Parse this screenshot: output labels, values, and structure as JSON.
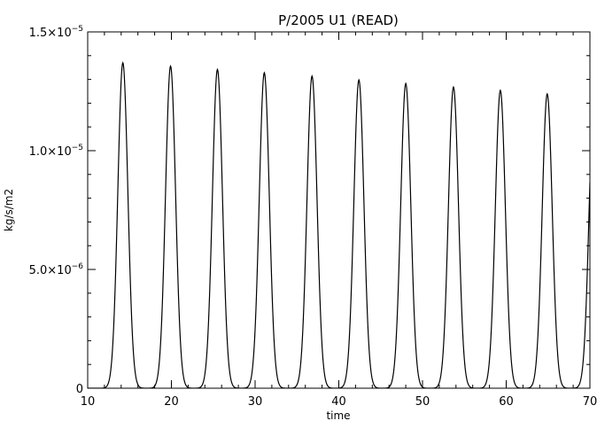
{
  "chart_data": {
    "type": "line",
    "title": "P/2005 U1 (READ)",
    "xlabel": "time",
    "ylabel": "kg/s/m2",
    "xlim": [
      10,
      70
    ],
    "ylim": [
      0,
      1.5e-05
    ],
    "grid": false,
    "x_ticks": [
      10,
      20,
      30,
      40,
      50,
      60,
      70
    ],
    "x_tick_labels": [
      "10",
      "20",
      "30",
      "40",
      "50",
      "60",
      "70"
    ],
    "y_ticks": [
      0,
      5e-06,
      1e-05,
      1.5e-05
    ],
    "y_tick_labels": [
      {
        "mantissa": "0",
        "exponent": ""
      },
      {
        "mantissa": "5.0×10",
        "exponent": "−6"
      },
      {
        "mantissa": "1.0×10",
        "exponent": "−5"
      },
      {
        "mantissa": "1.5×10",
        "exponent": "−5"
      }
    ],
    "peak_width": 0.6,
    "series": [
      {
        "color": "#000000",
        "peaks": [
          {
            "x": 14.2,
            "y": 1.37e-05
          },
          {
            "x": 19.9,
            "y": 1.356e-05
          },
          {
            "x": 25.5,
            "y": 1.342e-05
          },
          {
            "x": 31.1,
            "y": 1.328e-05
          },
          {
            "x": 36.8,
            "y": 1.314e-05
          },
          {
            "x": 42.4,
            "y": 1.298e-05
          },
          {
            "x": 48.0,
            "y": 1.283e-05
          },
          {
            "x": 53.7,
            "y": 1.268e-05
          },
          {
            "x": 59.3,
            "y": 1.254e-05
          },
          {
            "x": 64.9,
            "y": 1.239e-05
          },
          {
            "x": 70.5,
            "y": 1.225e-05
          }
        ]
      }
    ]
  }
}
